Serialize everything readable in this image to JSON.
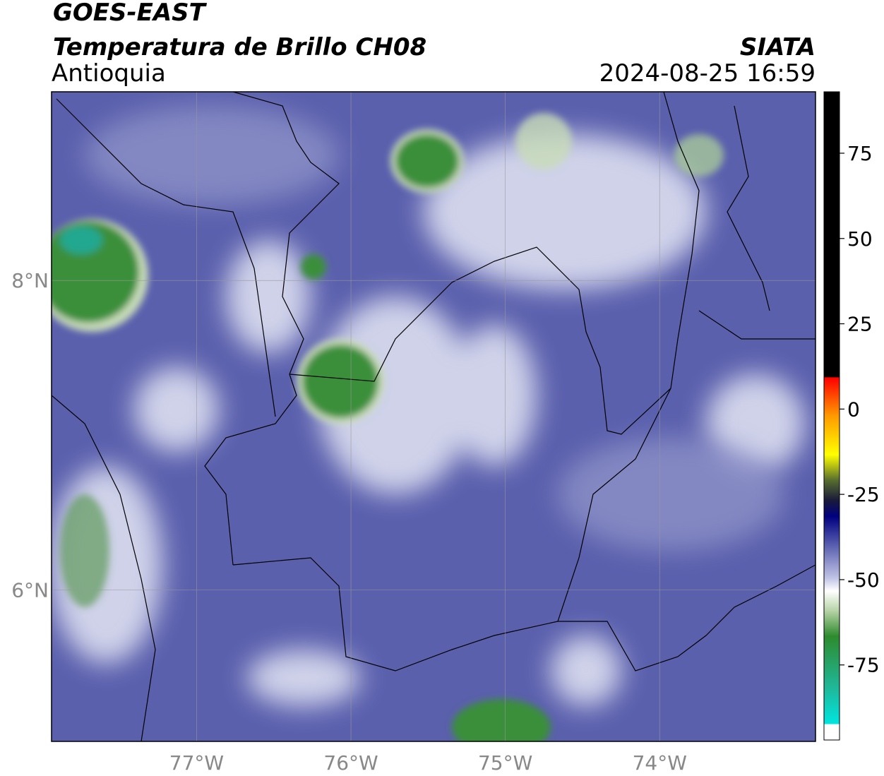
{
  "header": {
    "satellite": "GOES-EAST",
    "product": "Temperatura de Brillo CH08",
    "region": "Antioquia",
    "source": "SIATA",
    "datetime": "2024-08-25 16:59"
  },
  "map": {
    "lonlim": [
      -77.94,
      -72.99
    ],
    "latlim": [
      5.02,
      9.22
    ],
    "lon_ticks": [
      {
        "value": -77,
        "label": "77°W"
      },
      {
        "value": -76,
        "label": "76°W"
      },
      {
        "value": -75,
        "label": "75°W"
      },
      {
        "value": -74,
        "label": "74°W"
      }
    ],
    "lat_ticks": [
      {
        "value": 8,
        "label": "8°N"
      },
      {
        "value": 6,
        "label": "6°N"
      }
    ],
    "grid": true
  },
  "colorbar": {
    "clim": [
      -97,
      93
    ],
    "ticks": [
      75,
      50,
      25,
      0,
      -25,
      -50,
      -75
    ]
  }
}
